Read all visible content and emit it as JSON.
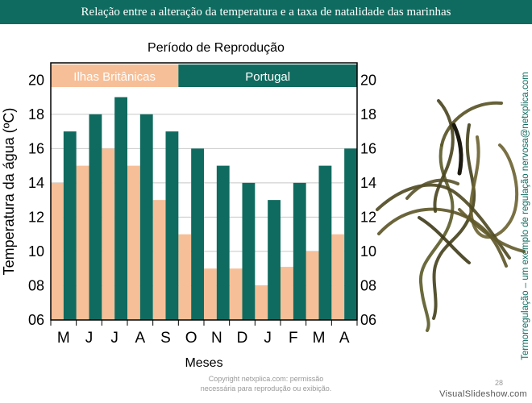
{
  "slide": {
    "title": "Relação entre a alteração da temperatura e a taxa de natalidade das marinhas",
    "side_text": "Termorregulação – um exemplo de regulação nervosa@netxplica.com",
    "copyright_line1": "Copyright netxplica.com: permissão",
    "copyright_line2": "necessária para reprodução ou exibição.",
    "slide_number": "28",
    "brand": "VisualSlideshow.com"
  },
  "colors": {
    "accent": "#0f6b5f",
    "uk": "#f7bf97",
    "portugal": "#0f6b5f"
  },
  "chart_data": {
    "type": "bar",
    "title": "Período de Reprodução",
    "xlabel": "Meses",
    "ylabel": "Temperatura da água (ºC)",
    "categories": [
      "M",
      "J",
      "J",
      "A",
      "S",
      "O",
      "N",
      "D",
      "J",
      "F",
      "M",
      "A"
    ],
    "yticks": [
      "06",
      "08",
      "10",
      "12",
      "14",
      "16",
      "18",
      "20"
    ],
    "ylim": [
      6,
      21
    ],
    "grid": true,
    "series": [
      {
        "name": "Ilhas Britânicas",
        "values": [
          14,
          15,
          16,
          15,
          13,
          11,
          9,
          9,
          8,
          9.1,
          10,
          11
        ]
      },
      {
        "name": "Portugal",
        "values": [
          17,
          18,
          19,
          18,
          17,
          16,
          15,
          14,
          13,
          14,
          15,
          16
        ]
      }
    ],
    "periods": [
      {
        "label": "Ilhas Britânicas",
        "series": 0,
        "from": 0,
        "to": 4
      },
      {
        "label": "Portugal",
        "series": 1,
        "from": 5,
        "to": 11
      }
    ]
  }
}
